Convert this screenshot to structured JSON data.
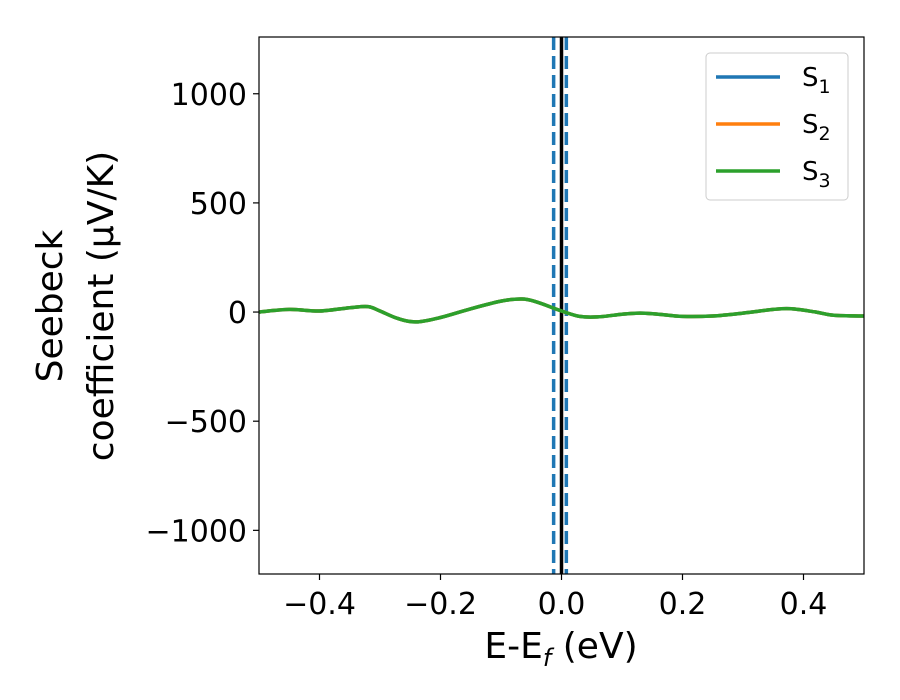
{
  "chart_data": {
    "type": "line",
    "title": "",
    "xlabel": {
      "main": "E-E",
      "sub": "f",
      "tail": " (eV)"
    },
    "ylabel": {
      "line1": "Seebeck",
      "line2": "coefficient  (μV/K)"
    },
    "xlim": [
      -0.5,
      0.5
    ],
    "ylim": [
      -1200,
      1260
    ],
    "xticks": [
      -0.4,
      -0.2,
      0.0,
      0.2,
      0.4
    ],
    "xtick_labels": [
      "−0.4",
      "−0.2",
      "0.0",
      "0.2",
      "0.4"
    ],
    "yticks": [
      -1000,
      -500,
      0,
      500,
      1000
    ],
    "ytick_labels": [
      "−1000",
      "−500",
      "0",
      "500",
      "1000"
    ],
    "grid": false,
    "legend_position": "top-right",
    "vlines": [
      {
        "x": 0.0,
        "color": "#000000",
        "style": "solid"
      },
      {
        "x": -0.013,
        "color": "#1f77b4",
        "style": "dashed"
      },
      {
        "x": 0.008,
        "color": "#1f77b4",
        "style": "dashed"
      }
    ],
    "series": [
      {
        "name_base": "S",
        "name_sub": "1",
        "color": "#1f77b4",
        "x": [
          -0.5,
          -0.45,
          -0.4,
          -0.35,
          -0.32,
          -0.3,
          -0.27,
          -0.24,
          -0.2,
          -0.15,
          -0.1,
          -0.065,
          -0.04,
          0.0,
          0.03,
          0.06,
          0.1,
          0.13,
          0.16,
          0.2,
          0.25,
          0.3,
          0.35,
          0.38,
          0.42,
          0.45,
          0.5
        ],
        "y": [
          0,
          12,
          5,
          20,
          25,
          5,
          -30,
          -45,
          -25,
          15,
          50,
          60,
          45,
          5,
          -20,
          -22,
          -10,
          -5,
          -10,
          -20,
          -18,
          -5,
          12,
          15,
          0,
          -15,
          -18
        ]
      },
      {
        "name_base": "S",
        "name_sub": "2",
        "color": "#ff7f0e",
        "x": [
          -0.5,
          -0.45,
          -0.4,
          -0.35,
          -0.32,
          -0.3,
          -0.27,
          -0.24,
          -0.2,
          -0.15,
          -0.1,
          -0.065,
          -0.04,
          0.0,
          0.03,
          0.06,
          0.1,
          0.13,
          0.16,
          0.2,
          0.25,
          0.3,
          0.35,
          0.38,
          0.42,
          0.45,
          0.5
        ],
        "y": [
          0,
          12,
          5,
          20,
          25,
          5,
          -30,
          -45,
          -25,
          15,
          50,
          60,
          45,
          5,
          -20,
          -22,
          -10,
          -5,
          -10,
          -20,
          -18,
          -5,
          12,
          15,
          0,
          -15,
          -18
        ]
      },
      {
        "name_base": "S",
        "name_sub": "3",
        "color": "#2ca02c",
        "x": [
          -0.5,
          -0.45,
          -0.4,
          -0.35,
          -0.32,
          -0.3,
          -0.27,
          -0.24,
          -0.2,
          -0.15,
          -0.1,
          -0.065,
          -0.04,
          0.0,
          0.03,
          0.06,
          0.1,
          0.13,
          0.16,
          0.2,
          0.25,
          0.3,
          0.35,
          0.38,
          0.42,
          0.45,
          0.5
        ],
        "y": [
          0,
          12,
          5,
          20,
          25,
          5,
          -30,
          -45,
          -25,
          15,
          50,
          60,
          45,
          5,
          -20,
          -22,
          -10,
          -5,
          -10,
          -20,
          -18,
          -5,
          12,
          15,
          0,
          -15,
          -18
        ]
      }
    ]
  }
}
